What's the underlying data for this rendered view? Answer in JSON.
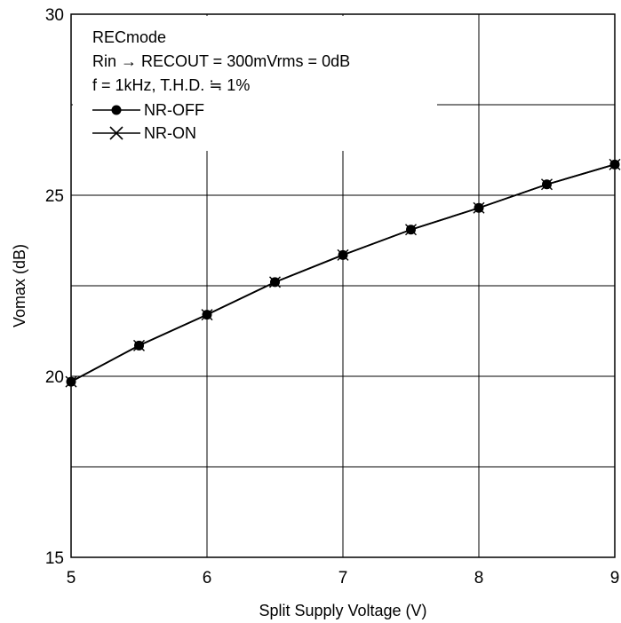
{
  "chart_data": {
    "type": "line",
    "xlabel": "Split Supply Voltage  (V)",
    "ylabel": "Vomax  (dB)",
    "xlim": [
      5,
      9
    ],
    "ylim": [
      15,
      30
    ],
    "x_ticks": [
      "5",
      "6",
      "7",
      "8",
      "9"
    ],
    "y_ticks": [
      "15",
      "20",
      "25",
      "30"
    ],
    "grid": true,
    "annotations": [
      "RECmode",
      "Rin → RECOUT = 300mVrms = 0dB",
      "f = 1kHz, T.H.D. ≒ 1%"
    ],
    "legend": {
      "placement": "top-left"
    },
    "x": [
      5,
      5.5,
      6,
      6.5,
      7,
      7.5,
      8,
      8.5,
      9
    ],
    "series": [
      {
        "name": "NR-OFF",
        "marker": "filled-circle",
        "color": "#000000",
        "values": [
          19.85,
          20.85,
          21.7,
          22.6,
          23.35,
          24.05,
          24.65,
          25.3,
          25.85
        ]
      },
      {
        "name": "NR-ON",
        "marker": "x-cross",
        "color": "#000000",
        "values": [
          19.85,
          20.85,
          21.7,
          22.6,
          23.35,
          24.05,
          24.65,
          25.3,
          25.85
        ]
      }
    ]
  }
}
